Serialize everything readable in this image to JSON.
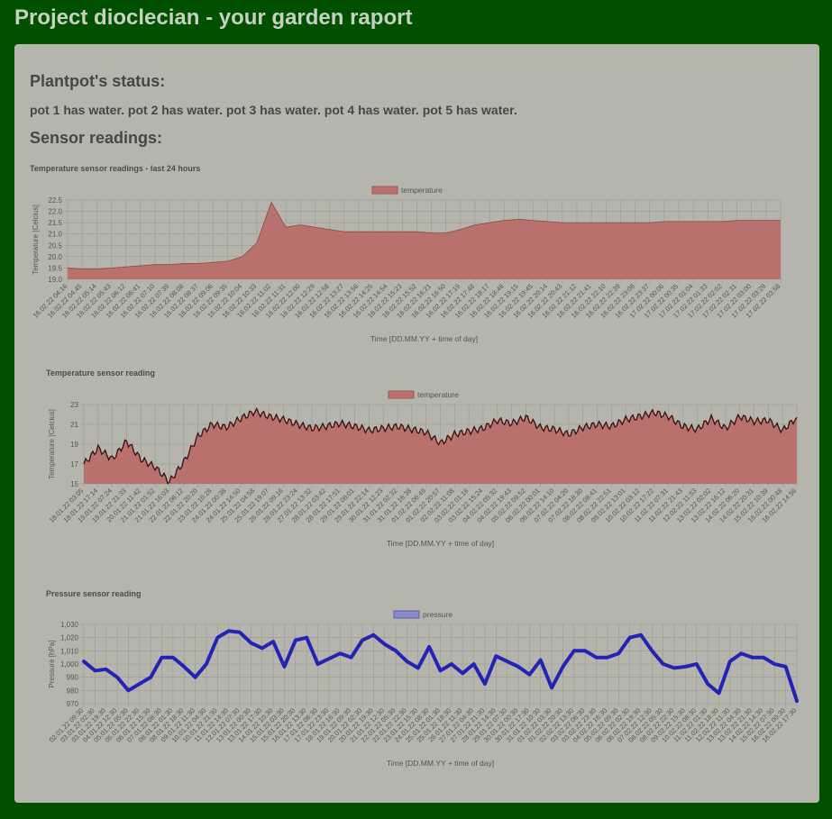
{
  "page": {
    "title": "Project dioclecian - your garden raport",
    "status_heading": "Plantpot's status:",
    "status_text": "pot 1 has water. pot 2 has water. pot 3 has water. pot 4 has water. pot 5 has water.",
    "sensor_heading": "Sensor readings:"
  },
  "colors": {
    "page_bg": "#005000",
    "panel_bg": "#b5b5ae",
    "temp_fill": "#b8716c",
    "temp_line": "#3a1010",
    "pressure_line": "#2424b4",
    "pressure_legend": "#8a8ac6"
  },
  "chart_data": [
    {
      "type": "area",
      "title": "Temperature sensor readings - last 24 hours",
      "legend": "temperature",
      "legend_position": "top-center",
      "xlabel": "Time [DD.MM.YY + time of day]",
      "ylabel": "Temperature [Celcius]",
      "ylim": [
        19.0,
        22.5
      ],
      "yticks": [
        "19.0",
        "19.5",
        "20.0",
        "20.5",
        "21.0",
        "21.5",
        "22.0",
        "22.5"
      ],
      "grid": true,
      "x_labels": [
        "16.02.22 04:16",
        "16.02.22 04:45",
        "16.02.22 05:14",
        "16.02.22 05:43",
        "16.02.22 06:12",
        "16.02.22 06:41",
        "16.02.22 07:10",
        "16.02.22 07:39",
        "16.02.22 08:08",
        "16.02.22 08:37",
        "16.02.22 09:06",
        "16.02.22 09:35",
        "16.02.22 10:04",
        "16.02.22 10:33",
        "16.02.22 11:02",
        "16.02.22 11:31",
        "16.02.22 12:00",
        "16.02.22 12:29",
        "16.02.22 12:58",
        "16.02.22 13:27",
        "16.02.22 13:56",
        "16.02.22 14:25",
        "16.02.22 14:54",
        "16.02.22 15:23",
        "16.02.22 15:52",
        "16.02.22 16:21",
        "16.02.22 16:50",
        "16.02.22 17:19",
        "16.02.22 17:48",
        "16.02.22 18:17",
        "16.02.22 18:46",
        "16.02.22 19:15",
        "16.02.22 19:45",
        "16.02.22 20:14",
        "16.02.22 20:43",
        "16.02.22 21:12",
        "16.02.22 21:41",
        "16.02.22 22:10",
        "16.02.22 22:39",
        "16.02.22 23:08",
        "16.02.22 23:37",
        "17.02.22 00:06",
        "17.02.22 00:35",
        "17.02.22 01:04",
        "17.02.22 01:33",
        "17.02.22 02:02",
        "17.02.22 02:31",
        "17.02.22 03:00",
        "17.02.22 03:29",
        "17.02.22 03:58"
      ],
      "values": [
        19.5,
        19.45,
        19.45,
        19.5,
        19.55,
        19.6,
        19.65,
        19.65,
        19.7,
        19.7,
        19.75,
        19.8,
        20.0,
        20.6,
        22.4,
        21.3,
        21.4,
        21.3,
        21.2,
        21.1,
        21.1,
        21.1,
        21.1,
        21.1,
        21.1,
        21.05,
        21.05,
        21.2,
        21.4,
        21.5,
        21.6,
        21.65,
        21.6,
        21.55,
        21.5,
        21.5,
        21.5,
        21.5,
        21.5,
        21.5,
        21.5,
        21.55,
        21.55,
        21.55,
        21.55,
        21.55,
        21.6,
        21.6,
        21.6,
        21.6
      ]
    },
    {
      "type": "area",
      "title": "Temperature sensor reading",
      "legend": "temperature",
      "legend_position": "top-center",
      "xlabel": "Time [DD.MM.YY + time of day]",
      "ylabel": "Temperature [Celcius]",
      "ylim": [
        15,
        23
      ],
      "yticks": [
        "15",
        "17",
        "19",
        "21",
        "23"
      ],
      "grid": true,
      "x_labels": [
        "18.01.22 03:05",
        "18.01.22 17:14",
        "19.01.22 07:24",
        "19.01.22 21:33",
        "20.01.22 11:42",
        "21.01.22 01:52",
        "21.01.22 16:03",
        "22.01.22 06:12",
        "22.01.22 20:20",
        "23.01.22 10:28",
        "24.01.22 00:38",
        "24.01.22 14:50",
        "25.01.22 04:58",
        "25.01.22 19:07",
        "26.01.22 09:16",
        "26.01.22 23:24",
        "27.01.22 13:32",
        "28.01.22 03:42",
        "28.01.22 17:51",
        "29.01.22 08:01",
        "29.01.22 22:14",
        "30.01.22 12:23",
        "31.01.22 02:32",
        "31.01.22 16:38",
        "01.02.22 06:49",
        "01.02.22 20:57",
        "02.02.22 11:08",
        "03.02.22 01:16",
        "03.02.22 15:24",
        "04.02.22 05:32",
        "04.02.22 19:43",
        "05.02.22 09:52",
        "06.02.22 00:01",
        "06.02.22 14:10",
        "07.02.22 04:20",
        "07.02.22 18:30",
        "08.02.22 08:41",
        "08.02.22 22:51",
        "09.02.22 13:01",
        "10.02.22 03:12",
        "10.02.22 17:22",
        "11.02.22 07:31",
        "11.02.22 21:43",
        "12.02.22 11:53",
        "13.02.22 02:02",
        "13.02.22 16:12",
        "14.02.22 06:20",
        "14.02.22 20:31",
        "15.02.22 10:39",
        "16.02.22 00:48",
        "16.02.22 14:56"
      ],
      "values": [
        17.0,
        18.6,
        17.5,
        19.3,
        17.5,
        16.7,
        15.2,
        17.2,
        19.8,
        21.0,
        20.7,
        21.6,
        22.3,
        21.8,
        21.5,
        21.0,
        20.6,
        20.8,
        21.1,
        20.8,
        20.4,
        20.6,
        20.8,
        20.5,
        20.2,
        19.1,
        20.0,
        20.3,
        20.6,
        21.4,
        21.1,
        21.7,
        20.7,
        20.5,
        20.0,
        20.7,
        21.0,
        20.8,
        21.5,
        21.8,
        22.2,
        21.8,
        20.8,
        20.5,
        21.6,
        20.6,
        21.8,
        21.3,
        21.4,
        20.4,
        21.7
      ]
    },
    {
      "type": "line",
      "title": "Pressure sensor reading",
      "legend": "pressure",
      "legend_position": "top-center",
      "xlabel": "Time [DD.MM.YY + time of day]",
      "ylabel": "Pressure [hPa]",
      "ylim": [
        970,
        1030
      ],
      "yticks": [
        "970",
        "980",
        "990",
        "1,000",
        "1,010",
        "1,020",
        "1,030"
      ],
      "grid": true,
      "x_labels": [
        "02.01.22 09:30",
        "03.01.22 02:30",
        "03.01.22 19:30",
        "04.01.22 12:30",
        "05.01.22 05:30",
        "05.01.22 22:30",
        "06.01.22 15:30",
        "07.01.22 08:30",
        "08.01.22 01:30",
        "08.01.22 18:30",
        "09.01.22 11:30",
        "10.01.22 04:30",
        "10.01.22 21:30",
        "11.01.22 14:30",
        "12.01.22 07:30",
        "13.01.22 00:30",
        "13.01.22 17:30",
        "14.01.22 10:30",
        "15.01.22 03:30",
        "15.01.22 20:30",
        "16.01.22 13:30",
        "17.01.22 06:30",
        "17.01.22 23:30",
        "18.01.22 16:30",
        "19.01.22 09:30",
        "20.01.22 02:30",
        "20.01.22 19:30",
        "21.01.22 12:30",
        "22.01.22 05:30",
        "22.01.22 22:30",
        "23.01.22 15:30",
        "24.01.22 08:30",
        "25.01.22 01:30",
        "25.01.22 18:30",
        "26.01.22 11:30",
        "27.01.22 04:30",
        "27.01.22 21:30",
        "28.01.22 14:30",
        "29.01.22 07:30",
        "30.01.22 00:30",
        "30.01.22 17:30",
        "31.01.22 10:30",
        "01.02.22 03:30",
        "01.02.22 20:30",
        "02.02.22 13:30",
        "03.02.22 06:30",
        "03.02.22 23:30",
        "04.02.22 16:30",
        "05.02.22 09:30",
        "06.02.22 02:30",
        "06.02.22 19:30",
        "07.02.22 12:30",
        "08.02.22 05:30",
        "08.02.22 22:30",
        "09.02.22 15:30",
        "10.02.22 08:30",
        "11.02.22 01:30",
        "11.02.22 18:30",
        "12.02.22 11:30",
        "13.02.22 04:30",
        "13.02.22 21:30",
        "14.02.22 14:30",
        "15.02.22 07:30",
        "16.02.22 00:30",
        "16.02.22 17:30"
      ],
      "values": [
        1002,
        995,
        996,
        990,
        980,
        985,
        990,
        1005,
        1005,
        998,
        990,
        1000,
        1020,
        1025,
        1024,
        1016,
        1012,
        1017,
        998,
        1018,
        1020,
        1000,
        1004,
        1008,
        1005,
        1018,
        1022,
        1015,
        1010,
        1002,
        997,
        1013,
        995,
        1000,
        993,
        1000,
        985,
        1006,
        1002,
        998,
        992,
        1003,
        982,
        998,
        1010,
        1010,
        1005,
        1005,
        1008,
        1020,
        1022,
        1010,
        1000,
        997,
        998,
        1000,
        985,
        978,
        1002,
        1008,
        1005,
        1005,
        1000,
        998,
        972
      ]
    }
  ]
}
